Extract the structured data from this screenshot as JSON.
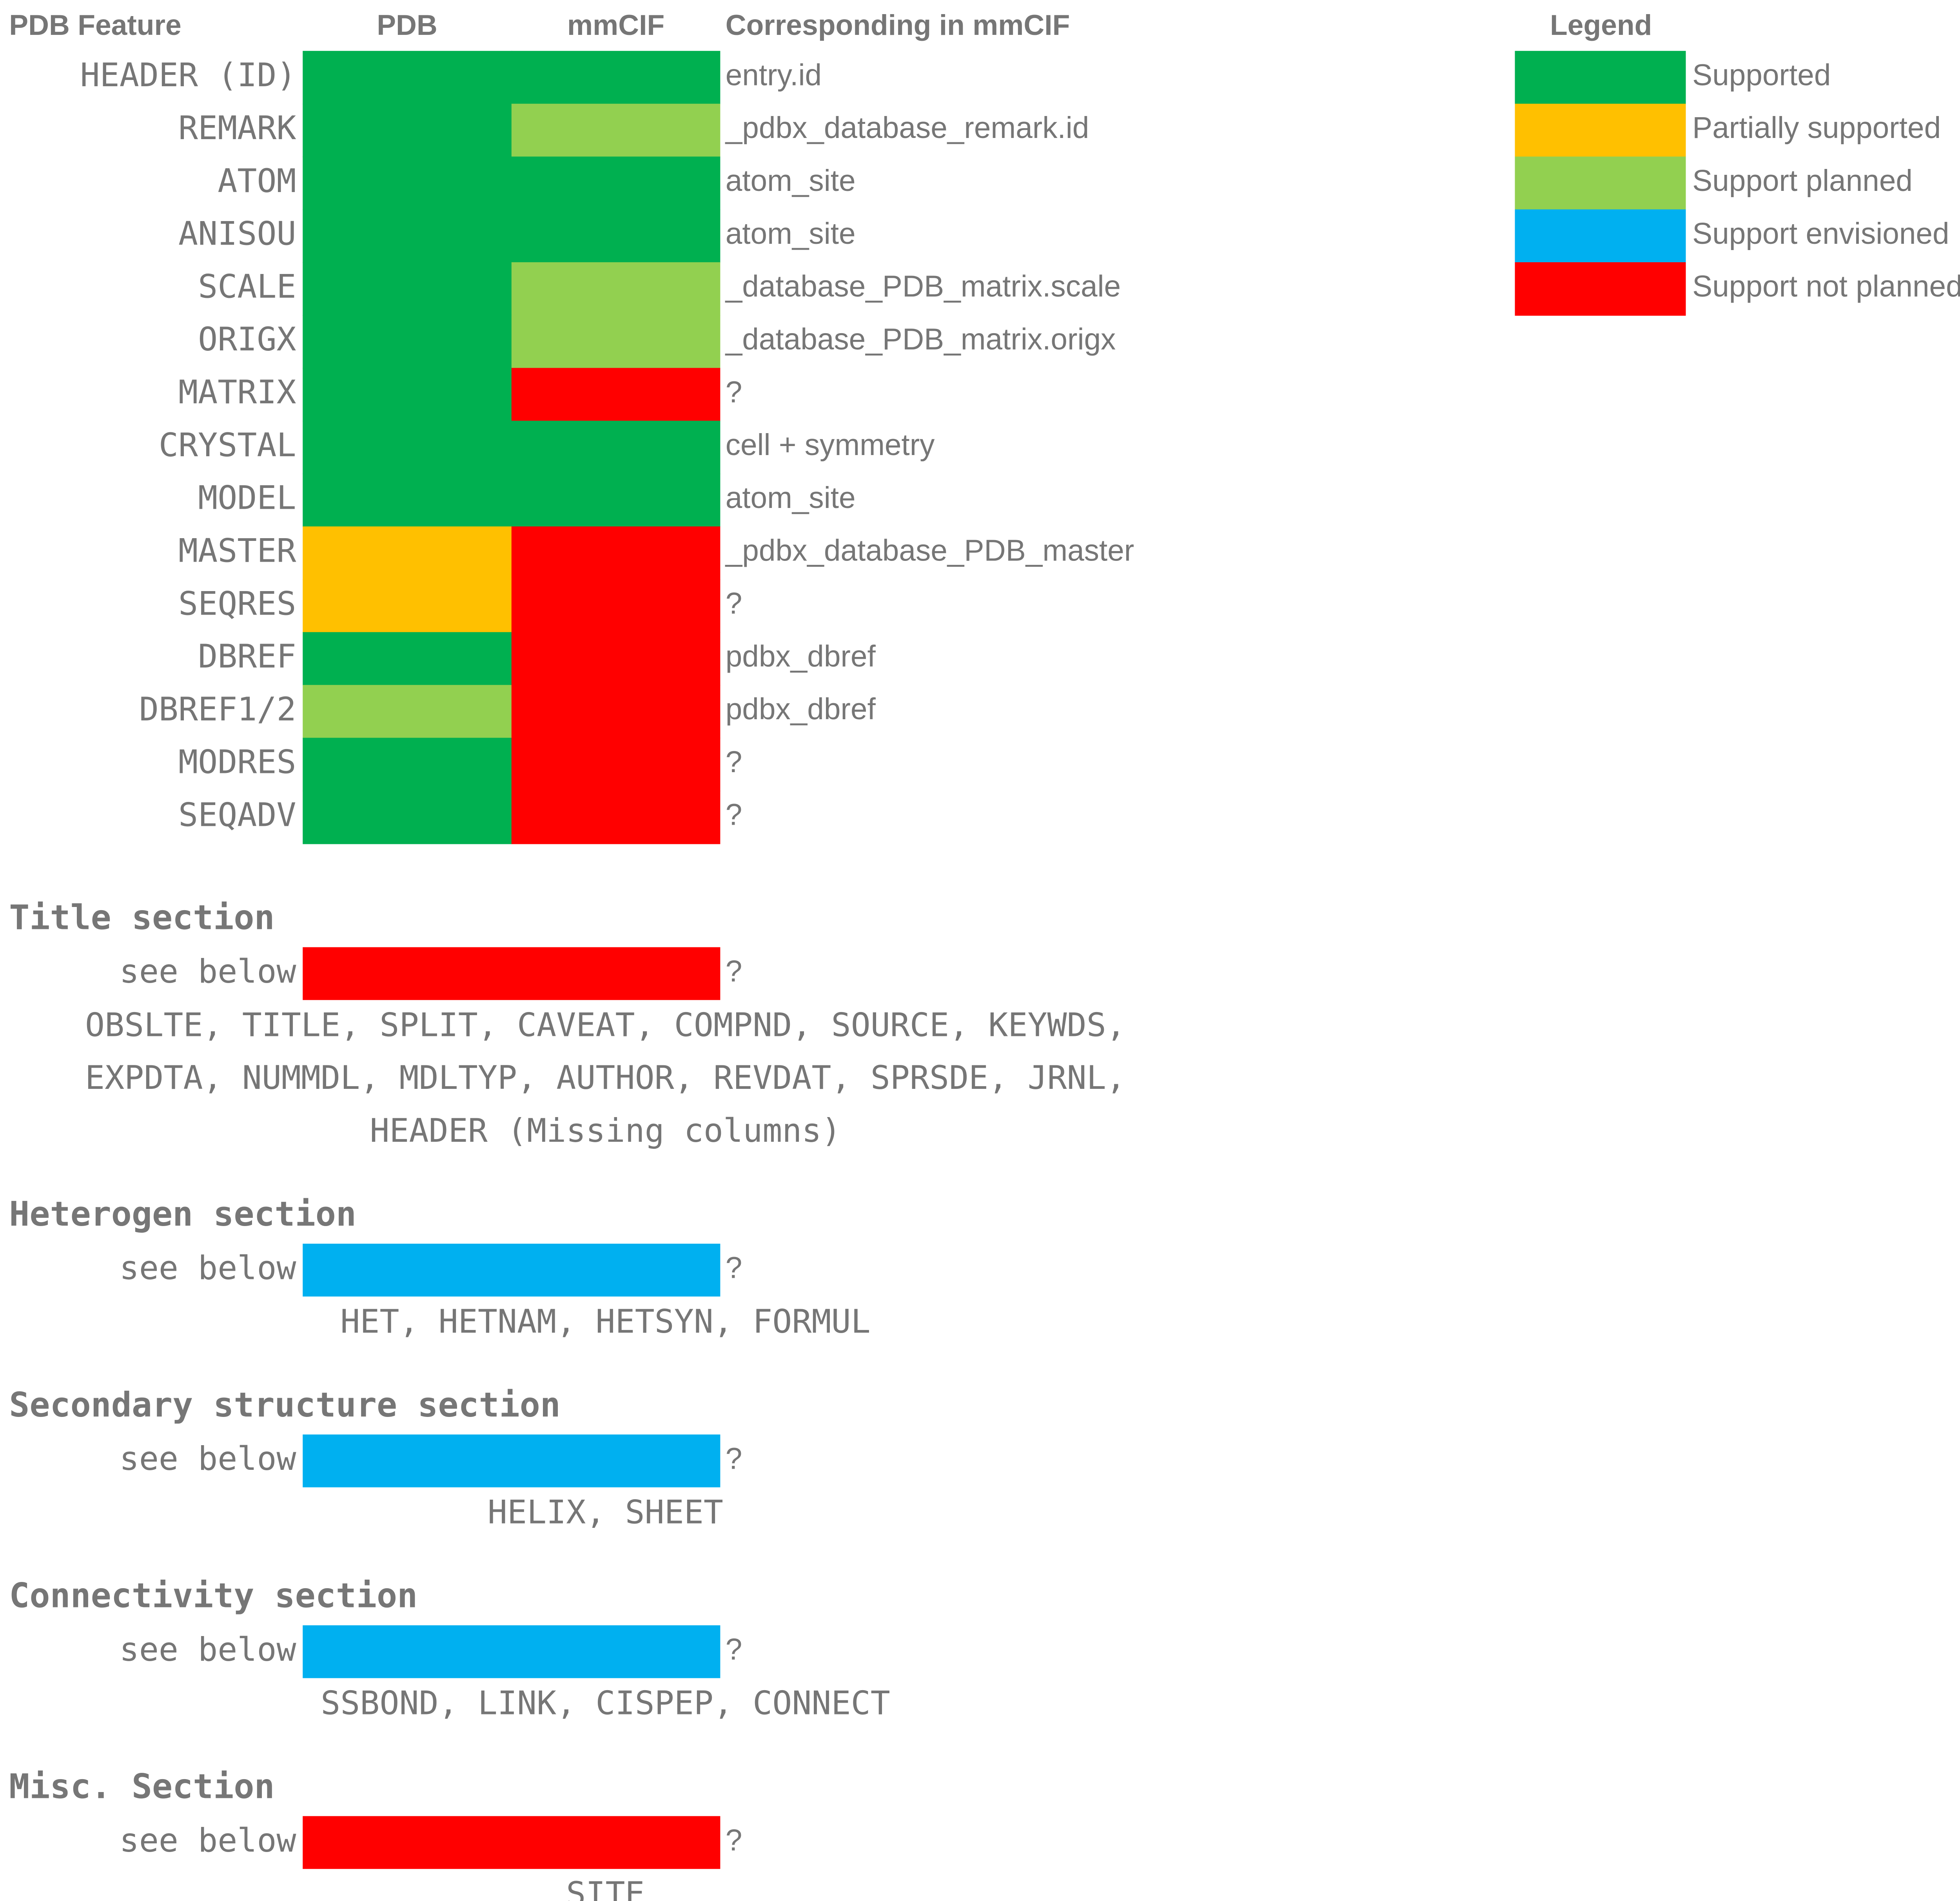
{
  "header": {
    "feature": "PDB Feature",
    "pdb": "PDB",
    "mmcif": "mmCIF",
    "corresponding": "Corresponding in mmCIF"
  },
  "legend": {
    "title": "Legend",
    "items": [
      {
        "label": "Supported",
        "color": "#00b050"
      },
      {
        "label": "Partially supported",
        "color": "#ffc000"
      },
      {
        "label": "Support planned",
        "color": "#92d050"
      },
      {
        "label": "Support envisioned",
        "color": "#00b0f0"
      },
      {
        "label": "Support not planned",
        "color": "#ff0000"
      }
    ]
  },
  "rows": [
    {
      "feature": "HEADER (ID)",
      "pdb": "#00b050",
      "mmcif": "#00b050",
      "corresponding": "entry.id"
    },
    {
      "feature": "REMARK",
      "pdb": "#00b050",
      "mmcif": "#92d050",
      "corresponding": "_pdbx_database_remark.id"
    },
    {
      "feature": "ATOM",
      "pdb": "#00b050",
      "mmcif": "#00b050",
      "corresponding": "atom_site"
    },
    {
      "feature": "ANISOU",
      "pdb": "#00b050",
      "mmcif": "#00b050",
      "corresponding": "atom_site"
    },
    {
      "feature": "SCALE",
      "pdb": "#00b050",
      "mmcif": "#92d050",
      "corresponding": "_database_PDB_matrix.scale"
    },
    {
      "feature": "ORIGX",
      "pdb": "#00b050",
      "mmcif": "#92d050",
      "corresponding": "_database_PDB_matrix.origx"
    },
    {
      "feature": "MATRIX",
      "pdb": "#00b050",
      "mmcif": "#ff0000",
      "corresponding": "?"
    },
    {
      "feature": "CRYSTAL",
      "pdb": "#00b050",
      "mmcif": "#00b050",
      "corresponding": "cell + symmetry"
    },
    {
      "feature": "MODEL",
      "pdb": "#00b050",
      "mmcif": "#00b050",
      "corresponding": "atom_site"
    },
    {
      "feature": "MASTER",
      "pdb": "#ffc000",
      "mmcif": "#ff0000",
      "corresponding": "_pdbx_database_PDB_master"
    },
    {
      "feature": "SEQRES",
      "pdb": "#ffc000",
      "mmcif": "#ff0000",
      "corresponding": "?"
    },
    {
      "feature": "DBREF",
      "pdb": "#00b050",
      "mmcif": "#ff0000",
      "corresponding": "pdbx_dbref"
    },
    {
      "feature": "DBREF1/2",
      "pdb": "#92d050",
      "mmcif": "#ff0000",
      "corresponding": "pdbx_dbref"
    },
    {
      "feature": "MODRES",
      "pdb": "#00b050",
      "mmcif": "#ff0000",
      "corresponding": "?"
    },
    {
      "feature": "SEQADV",
      "pdb": "#00b050",
      "mmcif": "#ff0000",
      "corresponding": "?"
    }
  ],
  "sections": [
    {
      "title": "Title section",
      "feature": "see below",
      "color": "#ff0000",
      "corresponding": "?",
      "members": [
        "OBSLTE, TITLE, SPLIT, CAVEAT, COMPND, SOURCE, KEYWDS,",
        "EXPDTA, NUMMDL, MDLTYP, AUTHOR, REVDAT, SPRSDE, JRNL,",
        "HEADER (Missing columns)"
      ]
    },
    {
      "title": "Heterogen section",
      "feature": "see below",
      "color": "#00b0f0",
      "corresponding": "?",
      "members": [
        "HET, HETNAM, HETSYN, FORMUL"
      ]
    },
    {
      "title": "Secondary structure section",
      "feature": "see below",
      "color": "#00b0f0",
      "corresponding": "?",
      "members": [
        "HELIX, SHEET"
      ]
    },
    {
      "title": "Connectivity section",
      "feature": "see below",
      "color": "#00b0f0",
      "corresponding": "?",
      "members": [
        "SSBOND, LINK, CISPEP, CONNECT"
      ]
    },
    {
      "title": "Misc. Section",
      "feature": "see below",
      "color": "#ff0000",
      "corresponding": "?",
      "members": [
        "SITE"
      ]
    }
  ]
}
